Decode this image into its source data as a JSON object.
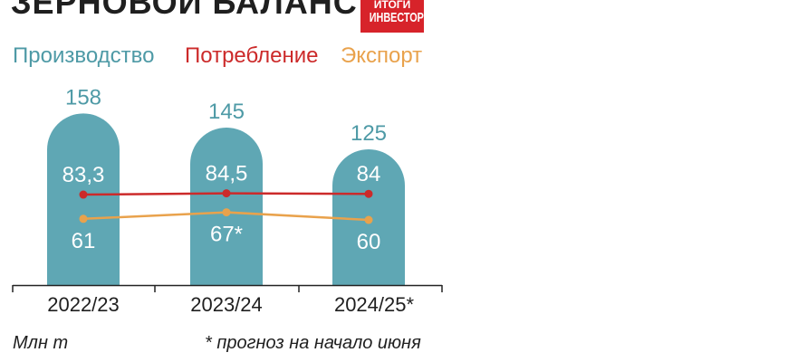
{
  "header": {
    "title": "ЗЕРНОВОЙ БАЛАНС",
    "logo_top": "ИТОГИ",
    "logo_bottom": "ИНВЕСТОР"
  },
  "colors": {
    "production": "#5fa7b4",
    "consumption": "#cc2a2a",
    "export": "#e9a24c",
    "production_text": "#4e9aa6"
  },
  "chart_data": {
    "type": "bar",
    "title": "ЗЕРНОВОЙ БАЛАНС",
    "categories": [
      "2022/23",
      "2023/24",
      "2024/25*"
    ],
    "series": [
      {
        "name": "Производство",
        "type": "bar",
        "values": [
          158,
          145,
          125
        ],
        "labels": [
          "158",
          "145",
          "125"
        ]
      },
      {
        "name": "Потребление",
        "type": "line",
        "values": [
          83.3,
          84.5,
          84
        ],
        "labels": [
          "83,3",
          "84,5",
          "84"
        ]
      },
      {
        "name": "Экспорт",
        "type": "line",
        "values": [
          61,
          67,
          60
        ],
        "labels": [
          "61",
          "67*",
          "60"
        ]
      }
    ],
    "unit": "Млн т",
    "note": "* прогноз на начало июня",
    "legend_position": "top-left",
    "grid": false
  }
}
